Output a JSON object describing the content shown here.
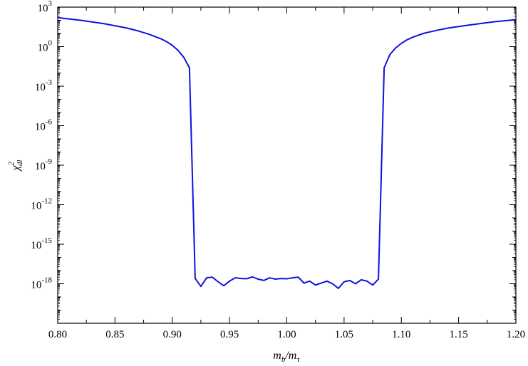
{
  "chart_data": {
    "type": "line",
    "xlabel": {
      "base": "m",
      "sub1": "b",
      "sep": "/m",
      "sub2": "τ"
    },
    "ylabel": {
      "base": "χ",
      "sup": "2",
      "sub": "dl"
    },
    "xlim": [
      0.8,
      1.2
    ],
    "ylim_exponent": [
      -21,
      3
    ],
    "y_scale": "log10",
    "grid": false,
    "x_ticks": [
      "0.80",
      "0.85",
      "0.90",
      "0.95",
      "1.00",
      "1.05",
      "1.10",
      "1.15",
      "1.20"
    ],
    "y_ticks": [
      {
        "base": "10",
        "exp": "3"
      },
      {
        "base": "10",
        "exp": "0"
      },
      {
        "base": "10",
        "exp": "-3"
      },
      {
        "base": "10",
        "exp": "-6"
      },
      {
        "base": "10",
        "exp": "-9"
      },
      {
        "base": "10",
        "exp": "-12"
      },
      {
        "base": "10",
        "exp": "-15"
      },
      {
        "base": "10",
        "exp": "-18"
      }
    ],
    "series": [
      {
        "color": "#1010e0",
        "x": [
          0.8,
          0.82,
          0.84,
          0.86,
          0.87,
          0.88,
          0.89,
          0.895,
          0.9,
          0.905,
          0.91,
          0.915,
          0.92,
          0.925,
          0.93,
          0.935,
          0.94,
          0.945,
          0.95,
          0.955,
          0.96,
          0.965,
          0.97,
          0.975,
          0.98,
          0.985,
          0.99,
          0.995,
          1.0,
          1.005,
          1.01,
          1.015,
          1.02,
          1.025,
          1.03,
          1.035,
          1.04,
          1.045,
          1.05,
          1.055,
          1.06,
          1.065,
          1.07,
          1.075,
          1.08,
          1.085,
          1.09,
          1.095,
          1.1,
          1.105,
          1.11,
          1.12,
          1.13,
          1.14,
          1.16,
          1.18,
          1.2
        ],
        "y_log10": [
          2.2,
          2.0,
          1.75,
          1.42,
          1.2,
          0.93,
          0.6,
          0.38,
          0.1,
          -0.28,
          -0.8,
          -1.6,
          -17.6,
          -18.2,
          -17.55,
          -17.5,
          -17.85,
          -18.15,
          -17.8,
          -17.55,
          -17.6,
          -17.62,
          -17.48,
          -17.65,
          -17.75,
          -17.55,
          -17.65,
          -17.6,
          -17.62,
          -17.55,
          -17.5,
          -17.95,
          -17.8,
          -18.1,
          -17.95,
          -17.8,
          -18.0,
          -18.35,
          -17.85,
          -17.75,
          -18.0,
          -17.7,
          -17.8,
          -18.1,
          -17.65,
          -1.6,
          -0.6,
          -0.1,
          0.25,
          0.52,
          0.72,
          1.02,
          1.22,
          1.4,
          1.65,
          1.88,
          2.05
        ]
      }
    ]
  }
}
